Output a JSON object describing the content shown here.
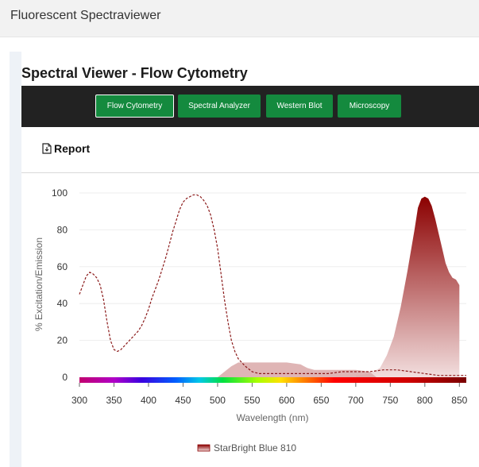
{
  "app": {
    "title": "Fluorescent Spectraviewer"
  },
  "viewer": {
    "title": "Spectral Viewer - Flow Cytometry",
    "tabs": [
      {
        "label": "Flow Cytometry",
        "active": true
      },
      {
        "label": "Spectral Analyzer",
        "active": false
      },
      {
        "label": "Western Blot",
        "active": false
      },
      {
        "label": "Microscopy",
        "active": false
      }
    ],
    "report_label": "Report",
    "icons": {
      "report": "document-download-icon"
    }
  },
  "colors": {
    "tab_green": "#148a3e",
    "toolbar_bg": "#222222",
    "emission_fill_top": "#8b0000",
    "excitation_line": "#8b1a1a",
    "laser_fill": "#d9a8a8"
  },
  "chart_data": {
    "type": "area",
    "xlabel": "Wavelength (nm)",
    "ylabel": "% Excitation/Emission",
    "xlim": [
      300,
      860
    ],
    "ylim": [
      0,
      100
    ],
    "x_ticks": [
      300,
      350,
      400,
      450,
      500,
      550,
      600,
      650,
      700,
      750,
      800,
      850
    ],
    "y_ticks": [
      0,
      20,
      40,
      60,
      80,
      100
    ],
    "legend": {
      "position": "bottom-center",
      "entries": [
        "StarBright Blue 810"
      ]
    },
    "spectrum_bar": true,
    "grid": "horizontal",
    "series": [
      {
        "name": "StarBright Blue 810",
        "kind": "emission",
        "x": [
          700,
          720,
          735,
          745,
          755,
          765,
          775,
          785,
          790,
          795,
          800,
          805,
          810,
          815,
          820,
          825,
          830,
          835,
          840,
          845,
          850
        ],
        "y": [
          1,
          2,
          5,
          12,
          22,
          38,
          58,
          80,
          92,
          97,
          98,
          97,
          93,
          86,
          78,
          70,
          62,
          57,
          54,
          53,
          50
        ]
      },
      {
        "kind": "excitation",
        "x": [
          300,
          305,
          310,
          315,
          320,
          325,
          330,
          335,
          340,
          345,
          350,
          355,
          360,
          365,
          370,
          375,
          380,
          385,
          390,
          395,
          400,
          405,
          410,
          415,
          420,
          425,
          430,
          435,
          440,
          445,
          450,
          455,
          460,
          465,
          470,
          475,
          480,
          485,
          490,
          495,
          500,
          505,
          510,
          515,
          520,
          525,
          530,
          540,
          550,
          560,
          580,
          600,
          620,
          640,
          660,
          680,
          700,
          720,
          740,
          760,
          780,
          800,
          820,
          840,
          860
        ],
        "y": [
          45,
          50,
          55,
          57,
          56,
          54,
          50,
          42,
          30,
          20,
          15,
          14,
          15,
          17,
          19,
          21,
          23,
          25,
          28,
          32,
          37,
          43,
          48,
          53,
          59,
          65,
          72,
          79,
          85,
          91,
          95,
          97,
          98,
          99,
          99,
          98,
          96,
          93,
          88,
          80,
          70,
          56,
          42,
          30,
          20,
          14,
          10,
          6,
          3,
          2,
          2,
          2,
          2,
          2,
          2,
          3,
          3,
          3,
          4,
          4,
          3,
          2,
          1,
          1,
          1
        ]
      },
      {
        "kind": "laser/filter",
        "x": [
          500,
          510,
          520,
          530,
          540,
          560,
          600,
          620,
          630,
          640,
          700,
          720,
          730
        ],
        "y": [
          0,
          3,
          6,
          8,
          8,
          8,
          8,
          7,
          5,
          4,
          4,
          3,
          0
        ]
      }
    ]
  }
}
